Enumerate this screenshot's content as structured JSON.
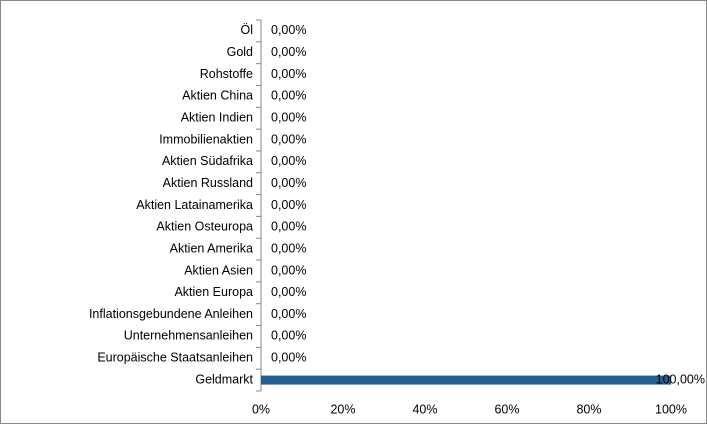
{
  "chart_data": {
    "type": "hbar",
    "categories": [
      "Öl",
      "Gold",
      "Rohstoffe",
      "Aktien China",
      "Aktien Indien",
      "Immobilienaktien",
      "Aktien Südafrika",
      "Aktien Russland",
      "Aktien Latainamerika",
      "Aktien Osteuropa",
      "Aktien Amerika",
      "Aktien Asien",
      "Aktien Europa",
      "Inflationsgebundene Anleihen",
      "Unternehmensanleihen",
      "Europäische Staatsanleihen",
      "Geldmarkt"
    ],
    "values": [
      0,
      0,
      0,
      0,
      0,
      0,
      0,
      0,
      0,
      0,
      0,
      0,
      0,
      0,
      0,
      0,
      100
    ],
    "value_labels": [
      "0,00%",
      "0,00%",
      "0,00%",
      "0,00%",
      "0,00%",
      "0,00%",
      "0,00%",
      "0,00%",
      "0,00%",
      "0,00%",
      "0,00%",
      "0,00%",
      "0,00%",
      "0,00%",
      "0,00%",
      "0,00%",
      "100,00%"
    ],
    "color": "#255e91",
    "xlim": [
      0,
      100
    ],
    "xticks": [
      {
        "value": 0,
        "label": "0%"
      },
      {
        "value": 20,
        "label": "20%"
      },
      {
        "value": 40,
        "label": "40%"
      },
      {
        "value": 60,
        "label": "60%"
      },
      {
        "value": 80,
        "label": "80%"
      },
      {
        "value": 100,
        "label": "100%"
      }
    ]
  }
}
